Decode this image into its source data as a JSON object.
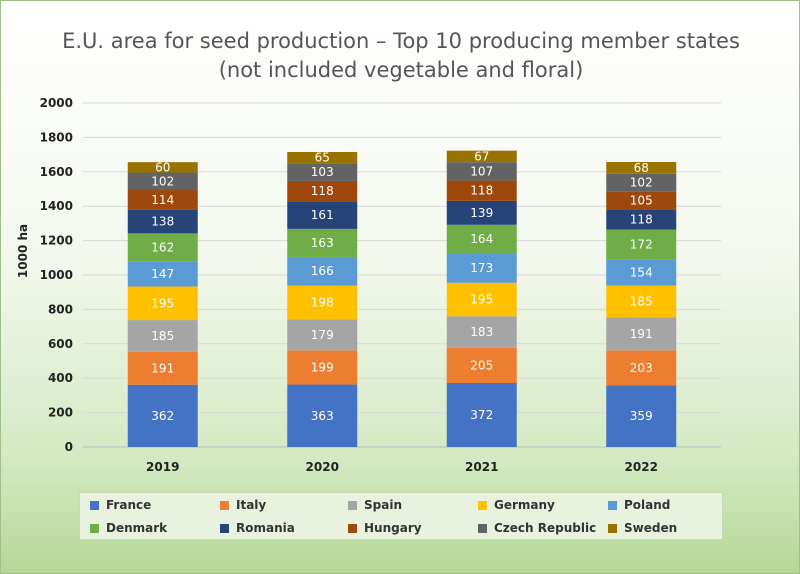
{
  "chart_data": {
    "type": "stacked-bar",
    "title_lines": [
      "E.U. area for seed production – Top 10 producing member states",
      "(not included vegetable and floral)"
    ],
    "xlabel": "",
    "ylabel": "1000 ha",
    "ylim": [
      0,
      2000
    ],
    "yticks": [
      "0",
      "200",
      "400",
      "600",
      "800",
      "1000",
      "1200",
      "1400",
      "1600",
      "1800",
      "2000"
    ],
    "grid": true,
    "legend_position": "bottom",
    "categories": [
      "2019",
      "2020",
      "2021",
      "2022"
    ],
    "series": [
      {
        "name": "France",
        "color": "#4472c4",
        "values": [
          362,
          363,
          372,
          359
        ]
      },
      {
        "name": "Italy",
        "color": "#ed7d31",
        "values": [
          191,
          199,
          205,
          203
        ]
      },
      {
        "name": "Spain",
        "color": "#a5a5a5",
        "values": [
          185,
          179,
          183,
          191
        ]
      },
      {
        "name": "Germany",
        "color": "#ffc000",
        "values": [
          195,
          198,
          195,
          185
        ]
      },
      {
        "name": "Poland",
        "color": "#5b9bd5",
        "values": [
          147,
          166,
          173,
          154
        ]
      },
      {
        "name": "Denmark",
        "color": "#70ad47",
        "values": [
          162,
          163,
          164,
          172
        ]
      },
      {
        "name": "Romania",
        "color": "#264478",
        "values": [
          138,
          161,
          139,
          118
        ]
      },
      {
        "name": "Hungary",
        "color": "#9e480e",
        "values": [
          114,
          118,
          118,
          105
        ]
      },
      {
        "name": "Czech Republic",
        "color": "#636363",
        "values": [
          102,
          103,
          107,
          102
        ]
      },
      {
        "name": "Sweden",
        "color": "#997300",
        "values": [
          60,
          65,
          67,
          68
        ]
      }
    ]
  }
}
